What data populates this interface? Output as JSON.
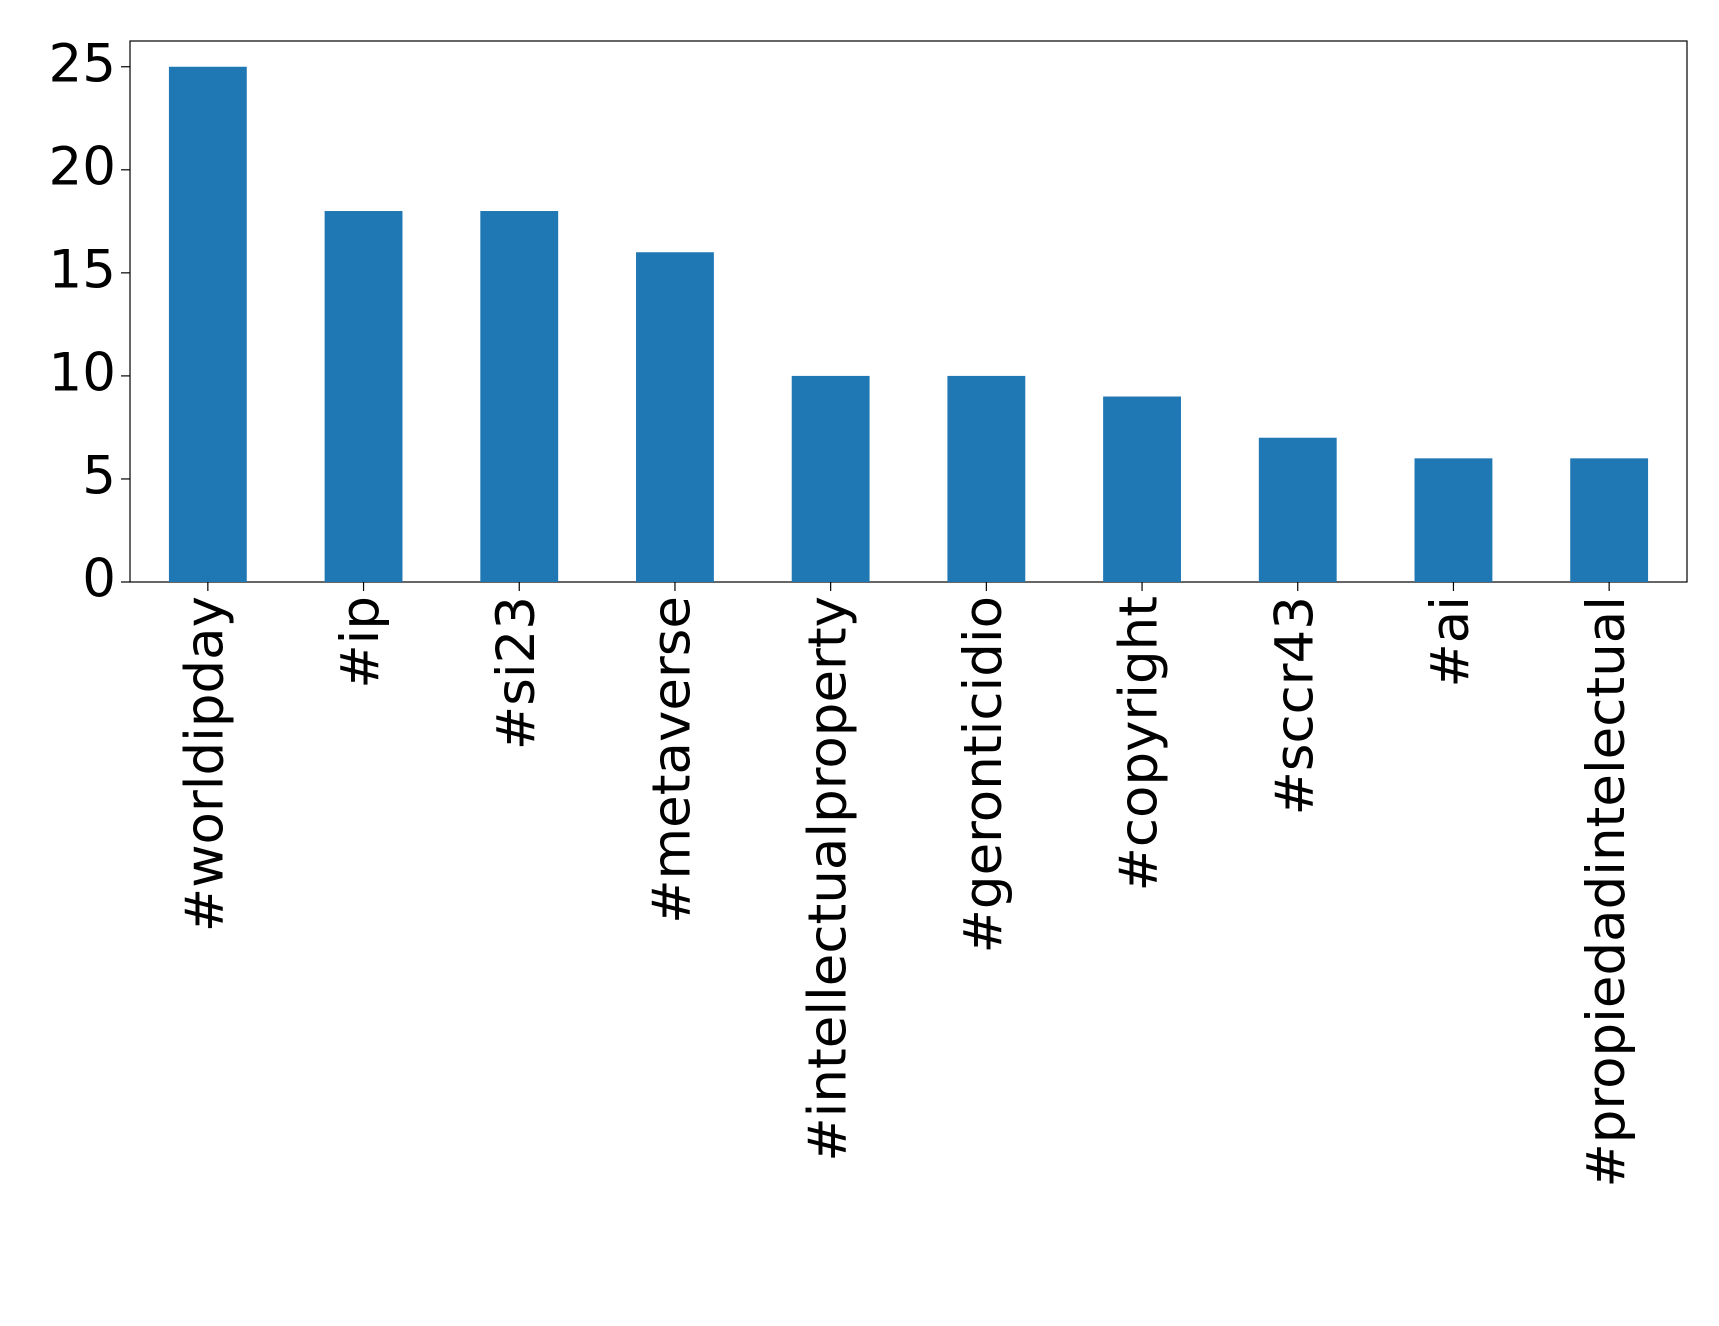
{
  "chart_data": {
    "type": "bar",
    "categories": [
      "#worldipday",
      "#ip",
      "#si23",
      "#metaverse",
      "#intellectualproperty",
      "#geronticidio",
      "#copyright",
      "#sccr43",
      "#ai",
      "#propiedadintelectual"
    ],
    "values": [
      25,
      18,
      18,
      16,
      10,
      10,
      9,
      7,
      6,
      6
    ],
    "color": "#1f77b4",
    "ylim": [
      0,
      26.25
    ],
    "yticks": [
      0,
      5,
      10,
      15,
      20,
      25
    ],
    "grid": false
  }
}
